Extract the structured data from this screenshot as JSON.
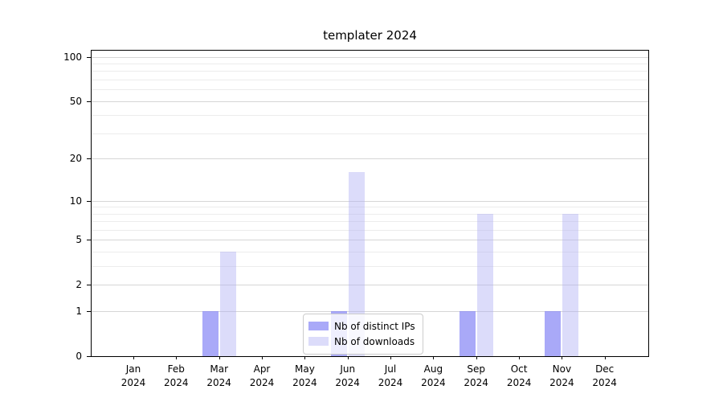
{
  "chart_data": {
    "type": "bar",
    "title": "templater 2024",
    "categories": [
      "Jan",
      "Feb",
      "Mar",
      "Apr",
      "May",
      "Jun",
      "Jul",
      "Aug",
      "Sep",
      "Oct",
      "Nov",
      "Dec"
    ],
    "x_year": "2024",
    "series": [
      {
        "name": "Nb of distinct IPs",
        "color": "rgba(132,132,245,0.70)",
        "values": [
          0,
          0,
          1,
          0,
          0,
          1,
          0,
          0,
          1,
          0,
          1,
          0
        ]
      },
      {
        "name": "Nb of downloads",
        "color": "rgba(177,177,244,0.45)",
        "values": [
          0,
          0,
          4,
          0,
          0,
          16,
          0,
          0,
          8,
          0,
          8,
          0
        ]
      }
    ],
    "yscale": "log1p",
    "ylim": [
      0,
      110
    ],
    "yticks_major": [
      0,
      1,
      2,
      5,
      10,
      20,
      50,
      100
    ],
    "yticks_minor": [
      3,
      4,
      6,
      7,
      8,
      9,
      30,
      40,
      60,
      70,
      80,
      90
    ],
    "grid": {
      "on": true,
      "major_color": "#d6d6d6",
      "minor_color": "#ececec"
    },
    "legend_position": "lower center",
    "axis_color": "#000000"
  }
}
